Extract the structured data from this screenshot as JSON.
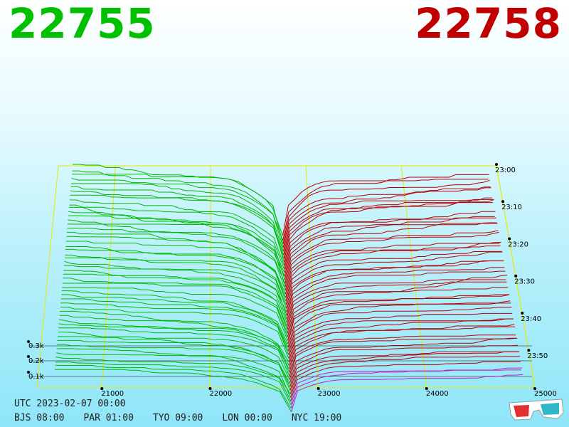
{
  "header": {
    "bid_price": "22755",
    "ask_price": "22758",
    "bid_color": "#00c000",
    "ask_color": "#c00000"
  },
  "footer": {
    "utc_label": "UTC 2023-02-07 00:00",
    "zones": [
      "BJS 08:00",
      "PAR 01:00",
      "TYO 09:00",
      "LON 00:00",
      "NYC 19:00"
    ],
    "glasses_icon": "anaglyph-3d-glasses-icon"
  },
  "chart_data": {
    "type": "line",
    "title": "",
    "xlabel": "",
    "ylabel": "",
    "x_ticks": [
      21000,
      22000,
      23000,
      24000,
      25000
    ],
    "x_tick_labels": [
      "21000",
      "22000",
      "23000",
      "24000",
      "25000"
    ],
    "xlim": [
      20400,
      25000
    ],
    "depth_ticks": [
      "0.3k",
      "0.2k",
      "0.1k"
    ],
    "depth_values": [
      300,
      200,
      100
    ],
    "time_ticks": [
      "23:00",
      "23:10",
      "23:20",
      "23:30",
      "23:40",
      "23:50"
    ],
    "snapshots": 50,
    "mid_price": 22756,
    "series": [
      {
        "name": "bid",
        "color": "#00bb00"
      },
      {
        "name": "ask",
        "color": "#bb0000"
      }
    ]
  }
}
